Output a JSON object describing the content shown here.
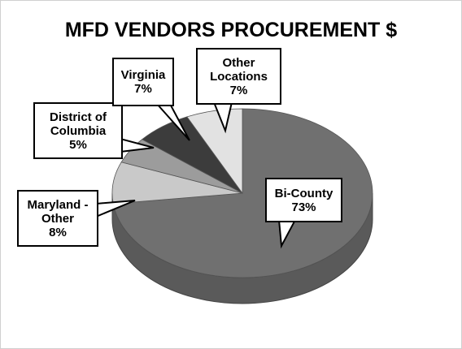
{
  "chart_data": {
    "type": "pie",
    "title": "MFD VENDORS PROCUREMENT $",
    "categories": [
      "Bi-County",
      "Maryland - Other",
      "District of Columbia",
      "Virginia",
      "Other Locations"
    ],
    "values": [
      73,
      8,
      5,
      7,
      7
    ],
    "value_labels": [
      "73%",
      "8%",
      "5%",
      "7%",
      "7%"
    ],
    "colors": [
      "#707070",
      "#c9c9c9",
      "#9c9c9c",
      "#3c3c3c",
      "#e2e2e2"
    ]
  }
}
